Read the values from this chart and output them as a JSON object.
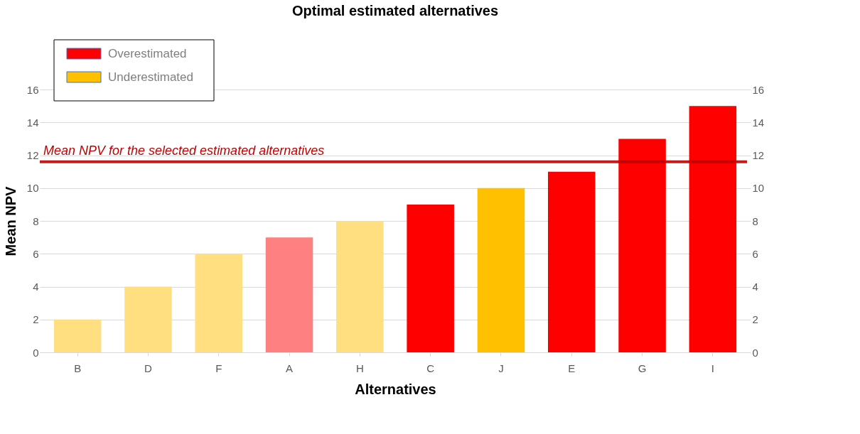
{
  "chart_data": {
    "type": "bar",
    "title": "Optimal estimated alternatives",
    "xlabel": "Alternatives",
    "ylabel": "Mean NPV",
    "categories": [
      "B",
      "D",
      "F",
      "A",
      "H",
      "C",
      "J",
      "E",
      "G",
      "I"
    ],
    "series": [
      {
        "name": "Overestimated",
        "color": "#ff0000",
        "colors": [
          null,
          null,
          null,
          "#ff8080",
          null,
          "#ff0000",
          null,
          "#ff0000",
          "#ff0000",
          "#ff0000"
        ],
        "values": [
          null,
          null,
          null,
          7,
          null,
          9,
          null,
          11,
          13,
          15
        ]
      },
      {
        "name": "Underestimated",
        "color": "#ffc000",
        "colors": [
          "#ffdf80",
          "#ffdf80",
          "#ffdf80",
          null,
          "#ffdf80",
          null,
          "#ffc000",
          null,
          null,
          null
        ],
        "values": [
          2,
          4,
          6,
          null,
          8,
          null,
          10,
          null,
          null,
          null
        ]
      }
    ],
    "ylim": [
      0,
      16
    ],
    "yticks": [
      0,
      2,
      4,
      6,
      8,
      10,
      12,
      14,
      16
    ],
    "y2lim": [
      0,
      16
    ],
    "y2ticks": [
      0,
      2,
      4,
      6,
      8,
      10,
      12,
      14,
      16
    ],
    "ref_lines": [
      {
        "axis": "y",
        "value": 11.6,
        "label": "Mean NPV for the selected estimated alternatives",
        "color": "#c00000"
      }
    ],
    "grid": "y",
    "legend": "top left"
  }
}
